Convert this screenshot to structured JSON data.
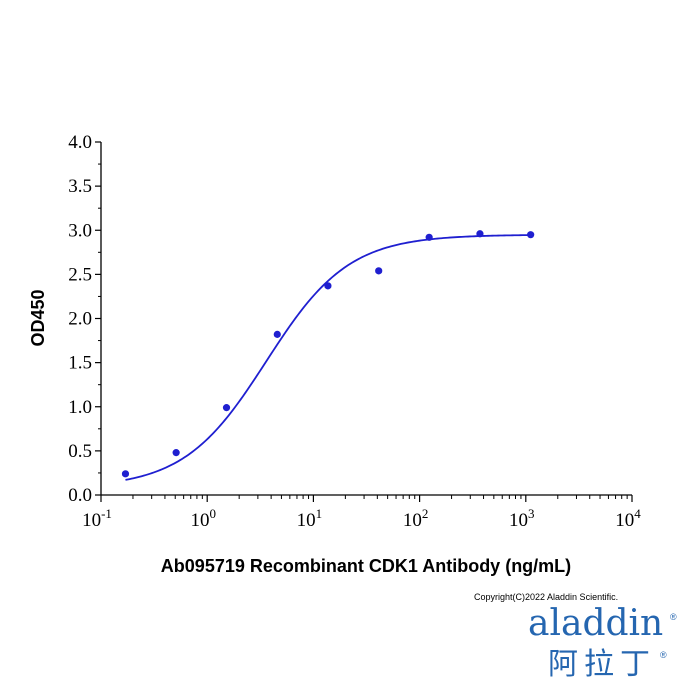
{
  "chart_data": {
    "type": "scatter",
    "title": "",
    "xlabel": "Ab095719 Recombinant CDK1 Antibody (ng/mL)",
    "ylabel": "OD450",
    "x_scale": "log",
    "xlim": [
      0.1,
      10000
    ],
    "ylim": [
      0,
      4.0
    ],
    "x_ticks": [
      {
        "base": "10",
        "exp": "-1"
      },
      {
        "base": "10",
        "exp": "0"
      },
      {
        "base": "10",
        "exp": "1"
      },
      {
        "base": "10",
        "exp": "2"
      },
      {
        "base": "10",
        "exp": "3"
      },
      {
        "base": "10",
        "exp": "4"
      }
    ],
    "y_ticks": [
      "0.0",
      "0.5",
      "1.0",
      "1.5",
      "2.0",
      "2.5",
      "3.0",
      "3.5",
      "4.0"
    ],
    "grid": false,
    "legend": "none",
    "series": [
      {
        "points": [
          {
            "x": 0.17,
            "y": 0.24
          },
          {
            "x": 0.51,
            "y": 0.48
          },
          {
            "x": 1.52,
            "y": 0.99
          },
          {
            "x": 4.57,
            "y": 1.82
          },
          {
            "x": 13.7,
            "y": 2.37
          },
          {
            "x": 41.2,
            "y": 2.54
          },
          {
            "x": 123,
            "y": 2.92
          },
          {
            "x": 370,
            "y": 2.96
          },
          {
            "x": 1111,
            "y": 2.95
          }
        ],
        "fit": {
          "type": "4PL",
          "bottom": 0.08,
          "top": 2.95,
          "ec50": 3.6,
          "hill": 1.12
        }
      }
    ],
    "colors": {
      "points": "#1f1fd0",
      "curve": "#1f1fd0",
      "axis": "#000000"
    }
  },
  "copyright": "Copyright(C)2022 Aladdin Scientific.",
  "logo": {
    "latin": "aladdin",
    "chinese": "阿拉丁",
    "reg": "®"
  }
}
